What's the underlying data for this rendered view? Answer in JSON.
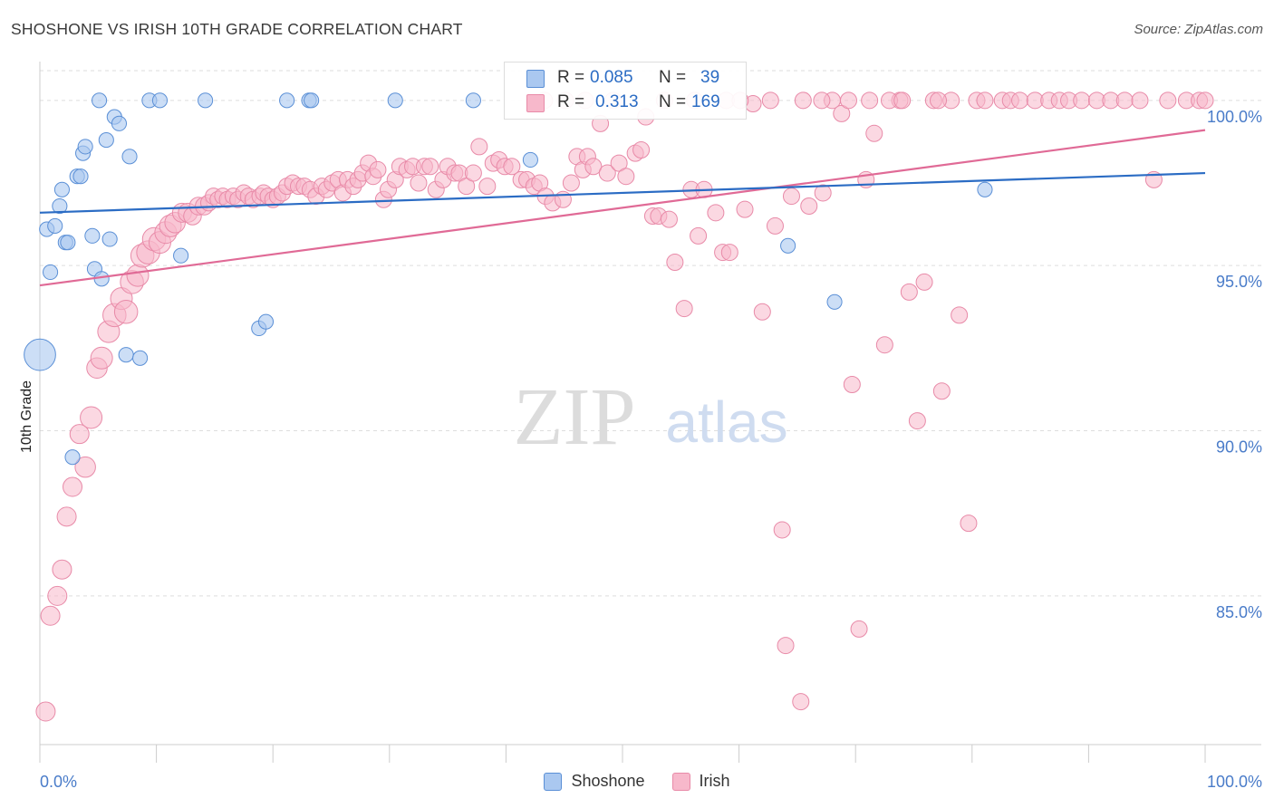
{
  "title": "SHOSHONE VS IRISH 10TH GRADE CORRELATION CHART",
  "source": "Source: ZipAtlas.com",
  "watermark": {
    "zip": "ZIP",
    "atlas": "atlas"
  },
  "colors": {
    "shoshone_fill": "#aac8f0",
    "shoshone_stroke": "#5a8fd6",
    "shoshone_line": "#2b6cc4",
    "irish_fill": "#f7b8cb",
    "irish_stroke": "#e88aa8",
    "irish_line": "#e06a96",
    "tick_label": "#4a7cc9",
    "grid": "#dddddd"
  },
  "stats": {
    "r_label": "R =",
    "n_label": "N =",
    "shoshone": {
      "r": "0.085",
      "n": "39"
    },
    "irish": {
      "r": "0.313",
      "n": "169"
    }
  },
  "legend": {
    "shoshone": "Shoshone",
    "irish": "Irish"
  },
  "chart_data": {
    "type": "scatter",
    "ylabel": "10th Grade",
    "xlim": [
      0,
      100
    ],
    "ylim": [
      80.5,
      100.9
    ],
    "x_tick_labels": {
      "left": "0.0%",
      "right": "100.0%"
    },
    "y_ticks": [
      {
        "value": 100,
        "label": "100.0%"
      },
      {
        "value": 95,
        "label": "95.0%"
      },
      {
        "value": 90,
        "label": "90.0%"
      },
      {
        "value": 85,
        "label": "85.0%"
      }
    ],
    "grid": true,
    "series": [
      {
        "name": "Shoshone",
        "trend": {
          "x": [
            0,
            100
          ],
          "y": [
            96.6,
            97.8
          ]
        },
        "points": [
          [
            0,
            92.3,
            28
          ],
          [
            0.6,
            96.1,
            13
          ],
          [
            0.9,
            94.8,
            13
          ],
          [
            1.3,
            96.2,
            13
          ],
          [
            1.7,
            96.8,
            13
          ],
          [
            1.9,
            97.3,
            13
          ],
          [
            2.2,
            95.7,
            13
          ],
          [
            2.4,
            95.7,
            13
          ],
          [
            2.8,
            89.2,
            13
          ],
          [
            3.2,
            97.7,
            13
          ],
          [
            3.5,
            97.7,
            13
          ],
          [
            3.7,
            98.4,
            13
          ],
          [
            3.9,
            98.6,
            13
          ],
          [
            4.5,
            95.9,
            13
          ],
          [
            4.7,
            94.9,
            13
          ],
          [
            5.1,
            100,
            13
          ],
          [
            5.3,
            94.6,
            13
          ],
          [
            5.7,
            98.8,
            13
          ],
          [
            6.0,
            95.8,
            13
          ],
          [
            6.4,
            99.5,
            13
          ],
          [
            6.8,
            99.3,
            13
          ],
          [
            7.4,
            92.3,
            13
          ],
          [
            7.7,
            98.3,
            13
          ],
          [
            8.6,
            92.2,
            13
          ],
          [
            9.4,
            100,
            13
          ],
          [
            10.3,
            100,
            13
          ],
          [
            12.1,
            95.3,
            13
          ],
          [
            14.2,
            100,
            13
          ],
          [
            18.8,
            93.1,
            13
          ],
          [
            19.4,
            93.3,
            13
          ],
          [
            21.2,
            100,
            13
          ],
          [
            23.1,
            100,
            13
          ],
          [
            23.3,
            100,
            13
          ],
          [
            30.5,
            100,
            13
          ],
          [
            37.2,
            100,
            13
          ],
          [
            42.1,
            98.2,
            13
          ],
          [
            64.2,
            95.6,
            13
          ],
          [
            68.2,
            93.9,
            13
          ],
          [
            81.1,
            97.3,
            13
          ]
        ]
      },
      {
        "name": "Irish",
        "trend": {
          "x": [
            0,
            100
          ],
          "y": [
            94.4,
            99.1
          ]
        },
        "points": [
          [
            0.5,
            81.5,
            14
          ],
          [
            0.9,
            84.4,
            14
          ],
          [
            1.5,
            85.0,
            14
          ],
          [
            1.9,
            85.8,
            14
          ],
          [
            2.3,
            87.4,
            14
          ],
          [
            2.8,
            88.3,
            14
          ],
          [
            3.4,
            89.9,
            14
          ],
          [
            3.9,
            88.9,
            15
          ],
          [
            4.4,
            90.4,
            16
          ],
          [
            4.9,
            91.9,
            15
          ],
          [
            5.3,
            92.2,
            16
          ],
          [
            5.9,
            93.0,
            16
          ],
          [
            6.4,
            93.5,
            17
          ],
          [
            7.0,
            94.0,
            16
          ],
          [
            7.4,
            93.6,
            17
          ],
          [
            7.9,
            94.5,
            17
          ],
          [
            8.4,
            94.7,
            16
          ],
          [
            8.8,
            95.3,
            17
          ],
          [
            9.3,
            95.4,
            17
          ],
          [
            9.8,
            95.8,
            17
          ],
          [
            10.3,
            95.7,
            16
          ],
          [
            10.8,
            96.0,
            16
          ],
          [
            11.2,
            96.2,
            16
          ],
          [
            11.6,
            96.3,
            15
          ],
          [
            12.2,
            96.6,
            14
          ],
          [
            12.7,
            96.6,
            14
          ],
          [
            13.1,
            96.5,
            13
          ],
          [
            13.6,
            96.8,
            13
          ],
          [
            14.1,
            96.8,
            13
          ],
          [
            14.5,
            96.9,
            12
          ],
          [
            14.9,
            97.1,
            12
          ],
          [
            15.3,
            97.0,
            12
          ],
          [
            15.7,
            97.1,
            12
          ],
          [
            16.1,
            97.0,
            12
          ],
          [
            16.6,
            97.1,
            12
          ],
          [
            17.0,
            97.0,
            12
          ],
          [
            17.5,
            97.2,
            12
          ],
          [
            17.9,
            97.1,
            12
          ],
          [
            18.3,
            97.0,
            12
          ],
          [
            18.9,
            97.1,
            12
          ],
          [
            19.2,
            97.2,
            12
          ],
          [
            19.6,
            97.1,
            12
          ],
          [
            20.0,
            97.0,
            12
          ],
          [
            20.4,
            97.1,
            12
          ],
          [
            20.8,
            97.2,
            12
          ],
          [
            21.2,
            97.4,
            12
          ],
          [
            21.7,
            97.5,
            12
          ],
          [
            22.2,
            97.4,
            12
          ],
          [
            22.7,
            97.4,
            12
          ],
          [
            23.2,
            97.3,
            12
          ],
          [
            23.7,
            97.1,
            12
          ],
          [
            24.2,
            97.4,
            12
          ],
          [
            24.6,
            97.3,
            12
          ],
          [
            25.1,
            97.5,
            12
          ],
          [
            25.6,
            97.6,
            12
          ],
          [
            26.0,
            97.2,
            12
          ],
          [
            26.4,
            97.6,
            12
          ],
          [
            26.9,
            97.4,
            12
          ],
          [
            27.3,
            97.6,
            12
          ],
          [
            27.7,
            97.8,
            12
          ],
          [
            28.2,
            98.1,
            12
          ],
          [
            28.6,
            97.7,
            12
          ],
          [
            29.0,
            97.9,
            12
          ],
          [
            29.5,
            97.0,
            12
          ],
          [
            29.9,
            97.3,
            12
          ],
          [
            30.5,
            97.6,
            12
          ],
          [
            30.9,
            98.0,
            12
          ],
          [
            31.5,
            97.9,
            12
          ],
          [
            32.0,
            98.0,
            12
          ],
          [
            32.5,
            97.5,
            12
          ],
          [
            33.0,
            98.0,
            12
          ],
          [
            33.5,
            98.0,
            12
          ],
          [
            34.0,
            97.3,
            12
          ],
          [
            34.6,
            97.6,
            12
          ],
          [
            35.0,
            98.0,
            12
          ],
          [
            35.6,
            97.8,
            12
          ],
          [
            36.0,
            97.8,
            12
          ],
          [
            36.6,
            97.4,
            12
          ],
          [
            37.2,
            97.8,
            12
          ],
          [
            37.7,
            98.6,
            12
          ],
          [
            38.4,
            97.4,
            12
          ],
          [
            38.9,
            98.1,
            12
          ],
          [
            39.4,
            98.2,
            12
          ],
          [
            39.9,
            98.0,
            12
          ],
          [
            40.5,
            98.0,
            12
          ],
          [
            41.3,
            97.6,
            12
          ],
          [
            41.8,
            97.6,
            12
          ],
          [
            42.4,
            97.4,
            12
          ],
          [
            42.9,
            97.5,
            12
          ],
          [
            43.4,
            97.1,
            12
          ],
          [
            44.0,
            96.9,
            12
          ],
          [
            44.9,
            97.0,
            12
          ],
          [
            45.6,
            97.5,
            12
          ],
          [
            46.1,
            98.3,
            12
          ],
          [
            46.6,
            97.9,
            12
          ],
          [
            47.0,
            98.3,
            12
          ],
          [
            47.5,
            98.0,
            12
          ],
          [
            48.1,
            99.3,
            12
          ],
          [
            48.7,
            97.8,
            12
          ],
          [
            49.2,
            100,
            12
          ],
          [
            49.7,
            98.1,
            12
          ],
          [
            50.3,
            97.7,
            12
          ],
          [
            51.1,
            98.4,
            12
          ],
          [
            51.6,
            98.5,
            12
          ],
          [
            52.0,
            99.5,
            12
          ],
          [
            52.6,
            96.5,
            12
          ],
          [
            53.1,
            96.5,
            12
          ],
          [
            54.0,
            96.4,
            12
          ],
          [
            54.5,
            95.1,
            12
          ],
          [
            55.3,
            93.7,
            12
          ],
          [
            55.9,
            97.3,
            12
          ],
          [
            56.5,
            95.9,
            12
          ],
          [
            57.0,
            97.3,
            12
          ],
          [
            58.0,
            96.6,
            12
          ],
          [
            58.6,
            95.4,
            12
          ],
          [
            59.2,
            95.4,
            12
          ],
          [
            60.5,
            96.7,
            12
          ],
          [
            61.2,
            99.9,
            12
          ],
          [
            62.0,
            93.6,
            12
          ],
          [
            63.1,
            96.2,
            12
          ],
          [
            63.7,
            87.0,
            12
          ],
          [
            64.0,
            83.5,
            12
          ],
          [
            64.5,
            97.1,
            12
          ],
          [
            65.3,
            81.8,
            12
          ],
          [
            66.0,
            96.8,
            12
          ],
          [
            67.2,
            97.2,
            12
          ],
          [
            68.0,
            100,
            12
          ],
          [
            68.8,
            99.6,
            12
          ],
          [
            69.7,
            91.4,
            12
          ],
          [
            70.3,
            84.0,
            12
          ],
          [
            70.9,
            97.6,
            12
          ],
          [
            71.6,
            99.0,
            12
          ],
          [
            72.5,
            92.6,
            12
          ],
          [
            73.8,
            100,
            12
          ],
          [
            74.6,
            94.2,
            12
          ],
          [
            75.3,
            90.3,
            12
          ],
          [
            75.9,
            94.5,
            12
          ],
          [
            76.7,
            100,
            12
          ],
          [
            77.4,
            91.2,
            12
          ],
          [
            78.2,
            100,
            12
          ],
          [
            78.9,
            93.5,
            12
          ],
          [
            79.7,
            87.2,
            12
          ],
          [
            80.4,
            100,
            12
          ],
          [
            81.1,
            100,
            12
          ],
          [
            82.6,
            100,
            12
          ],
          [
            83.3,
            100,
            12
          ],
          [
            84.1,
            100,
            12
          ],
          [
            85.4,
            100,
            12
          ],
          [
            86.6,
            100,
            12
          ],
          [
            87.5,
            100,
            12
          ],
          [
            88.3,
            100,
            12
          ],
          [
            89.4,
            100,
            12
          ],
          [
            90.7,
            100,
            12
          ],
          [
            91.9,
            100,
            12
          ],
          [
            93.1,
            100,
            12
          ],
          [
            94.4,
            100,
            12
          ],
          [
            95.6,
            97.6,
            12
          ],
          [
            96.8,
            100,
            12
          ],
          [
            98.4,
            100,
            12
          ],
          [
            99.5,
            100,
            12
          ],
          [
            100,
            100,
            12
          ],
          [
            43.3,
            100,
            12
          ],
          [
            45.1,
            100,
            12
          ],
          [
            46.8,
            100,
            12
          ],
          [
            53.6,
            100,
            12
          ],
          [
            56.2,
            100,
            12
          ],
          [
            58.9,
            100,
            12
          ],
          [
            60.1,
            100,
            12
          ],
          [
            62.7,
            100,
            12
          ],
          [
            65.5,
            100,
            12
          ],
          [
            67.1,
            100,
            12
          ],
          [
            69.4,
            100,
            12
          ],
          [
            71.2,
            100,
            12
          ],
          [
            72.9,
            100,
            12
          ],
          [
            74.0,
            100,
            12
          ],
          [
            77.1,
            100,
            12
          ]
        ]
      }
    ]
  }
}
